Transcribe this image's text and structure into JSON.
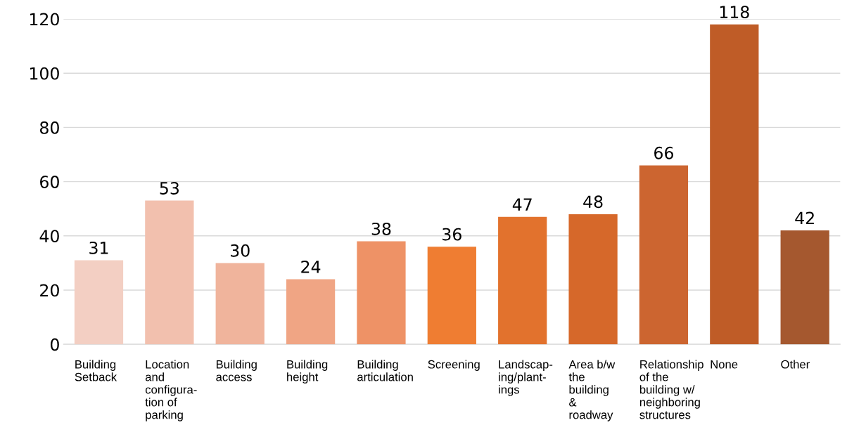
{
  "chart_data": {
    "type": "bar",
    "categories": [
      "Building\nSetback",
      "Location\nand\nconfigura-\ntion of\nparking",
      "Building\naccess",
      "Building\nheight",
      "Building\narticulation",
      "Screening",
      "Landscap-\ning/plant-\nings",
      "Area b/w\nthe\nbuilding\n&\nroadway",
      "Relationship\nof the\nbuilding w/\nneighboring\nstructures",
      "None",
      "Other"
    ],
    "values": [
      31,
      53,
      30,
      24,
      38,
      36,
      47,
      48,
      66,
      118,
      42
    ],
    "colors": [
      "#f3cfc3",
      "#f2c0ae",
      "#f0b49c",
      "#f0a584",
      "#ee9266",
      "#ef7d32",
      "#e2722d",
      "#d6682a",
      "#cc6530",
      "#bf5c27",
      "#a5582f"
    ],
    "ylim": [
      0,
      120
    ],
    "yticks": [
      0,
      20,
      40,
      60,
      80,
      100,
      120
    ],
    "grid": "y",
    "data_labels": true,
    "legend": false
  }
}
